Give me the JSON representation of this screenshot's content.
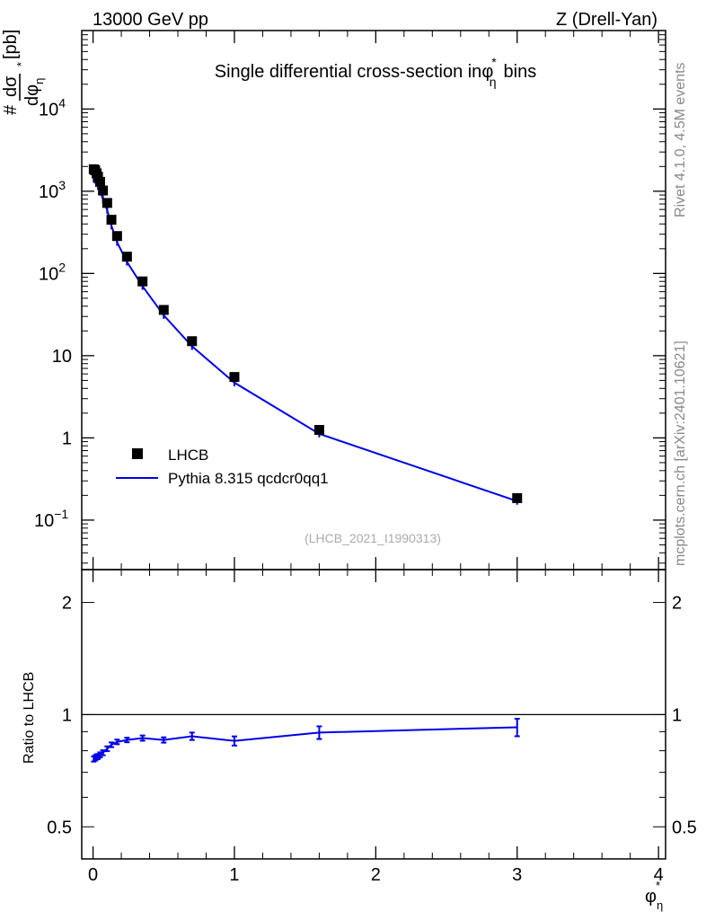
{
  "header": {
    "left": "13000 GeV pp",
    "right": "Z (Drell-Yan)"
  },
  "side_labels": {
    "rivet": "Rivet 4.1.0,  4.5M events",
    "mcplots": "mcplots.cern.ch [arXiv:2401.10621]"
  },
  "colors": {
    "mc": "#0000e6",
    "data": "#000000",
    "axis": "#000000",
    "analysis_label": "#aaaaaa"
  },
  "chart_data": [
    {
      "type": "scatter",
      "panel": "main",
      "title_parts": {
        "pre": "Single differential cross-section in",
        "sym": "φ",
        "sup": "*",
        "sub": "η",
        "post": "bins"
      },
      "ylabel_parts": {
        "hash": "#",
        "num": "dσ",
        "den": "dφ",
        "den_sub": "η",
        "den_sup": "*",
        "unit": "[pb]"
      },
      "yscale": "log",
      "xlim": [
        -0.08,
        4.05
      ],
      "ylim": [
        0.025,
        90000
      ],
      "yticks": [
        {
          "value": 0.1,
          "base": "10",
          "exp": "−1"
        },
        {
          "value": 1,
          "base": "1",
          "exp": ""
        },
        {
          "value": 10,
          "base": "10",
          "exp": ""
        },
        {
          "value": 100,
          "base": "10",
          "exp": "2"
        },
        {
          "value": 1000,
          "base": "10",
          "exp": "3"
        },
        {
          "value": 10000,
          "base": "10",
          "exp": "4"
        }
      ],
      "analysis_label": "(LHCB_2021_I1990313)",
      "legend": {
        "position": "lower-left",
        "entries": [
          "LHCB",
          "Pythia 8.315 qcdcr0qq1"
        ]
      },
      "series": [
        {
          "name": "LHCB",
          "style": "markers",
          "x": [
            0.005,
            0.015,
            0.025,
            0.035,
            0.05,
            0.07,
            0.1,
            0.13,
            0.17,
            0.24,
            0.35,
            0.5,
            0.7,
            1.0,
            1.6,
            3.0
          ],
          "y": [
            1850,
            1800,
            1650,
            1500,
            1300,
            1020,
            720,
            450,
            285,
            160,
            80,
            36,
            15,
            5.5,
            1.25,
            0.185
          ]
        },
        {
          "name": "Pythia 8.315 qcdcr0qq1",
          "style": "line",
          "x": [
            0.005,
            0.015,
            0.025,
            0.035,
            0.05,
            0.07,
            0.1,
            0.13,
            0.17,
            0.24,
            0.35,
            0.5,
            0.7,
            1.0,
            1.6,
            3.0
          ],
          "y": [
            1400,
            1370,
            1270,
            1150,
            1010,
            800,
            590,
            380,
            240,
            138,
            70,
            31,
            13,
            4.7,
            1.12,
            0.17
          ]
        }
      ]
    },
    {
      "type": "line",
      "panel": "ratio",
      "ylabel": "Ratio to LHCB",
      "xlabel_parts": {
        "sym": "φ",
        "sub": "η",
        "sup": "*"
      },
      "yscale": "log",
      "xlim": [
        -0.08,
        4.05
      ],
      "ylim": [
        0.41,
        2.45
      ],
      "reference_line": 1,
      "xticks": [
        "0",
        "1",
        "2",
        "3",
        "4"
      ],
      "yticks": [
        {
          "value": 0.5,
          "label": "0.5"
        },
        {
          "value": 1,
          "label": "1"
        },
        {
          "value": 2,
          "label": "2"
        }
      ],
      "series": [
        {
          "name": "Pythia 8.315 qcdcr0qq1 / LHCB",
          "x": [
            0.005,
            0.015,
            0.025,
            0.035,
            0.05,
            0.07,
            0.1,
            0.13,
            0.17,
            0.24,
            0.35,
            0.5,
            0.7,
            1.0,
            1.6,
            3.0
          ],
          "y": [
            0.76,
            0.765,
            0.77,
            0.772,
            0.78,
            0.79,
            0.81,
            0.83,
            0.845,
            0.855,
            0.865,
            0.855,
            0.875,
            0.85,
            0.895,
            0.925
          ],
          "err": [
            0.012,
            0.012,
            0.012,
            0.012,
            0.012,
            0.012,
            0.012,
            0.012,
            0.012,
            0.012,
            0.014,
            0.014,
            0.02,
            0.024,
            0.035,
            0.05
          ]
        }
      ]
    }
  ]
}
